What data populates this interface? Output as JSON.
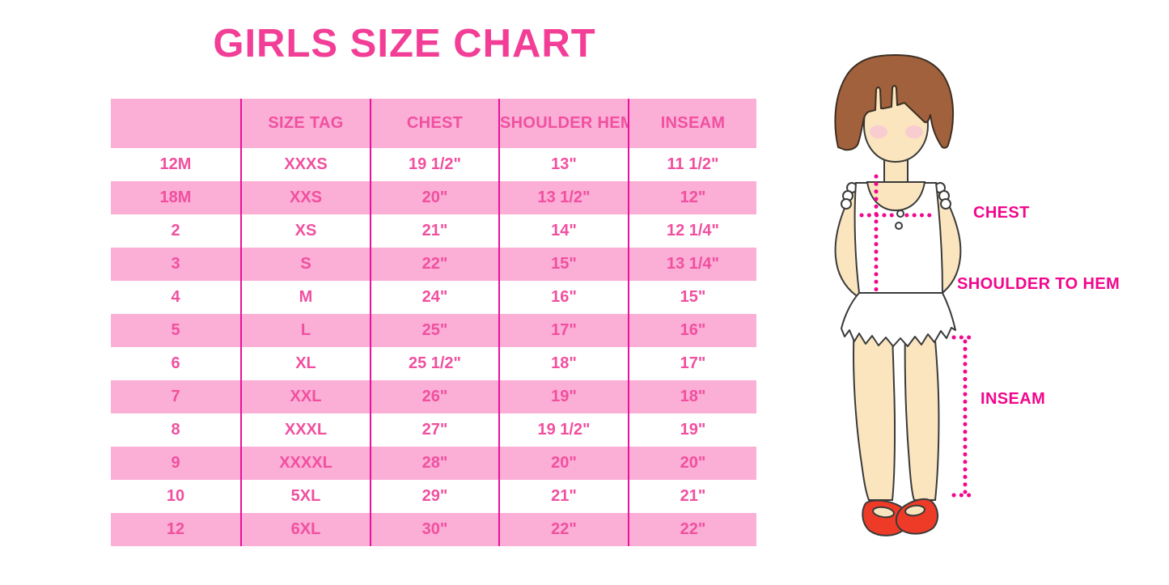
{
  "title": "GIRLS SIZE CHART",
  "chart_data": {
    "type": "table",
    "title": "GIRLS SIZE CHART",
    "columns": [
      "",
      "SIZE TAG",
      "CHEST",
      "SHOULDER HEM",
      "INSEAM"
    ],
    "rows": [
      [
        "12M",
        "XXXS",
        "19 1/2\"",
        "13\"",
        "11 1/2\""
      ],
      [
        "18M",
        "XXS",
        "20\"",
        "13 1/2\"",
        "12\""
      ],
      [
        "2",
        "XS",
        "21\"",
        "14\"",
        "12 1/4\""
      ],
      [
        "3",
        "S",
        "22\"",
        "15\"",
        "13 1/4\""
      ],
      [
        "4",
        "M",
        "24\"",
        "16\"",
        "15\""
      ],
      [
        "5",
        "L",
        "25\"",
        "17\"",
        "16\""
      ],
      [
        "6",
        "XL",
        "25 1/2\"",
        "18\"",
        "17\""
      ],
      [
        "7",
        "XXL",
        "26\"",
        "19\"",
        "18\""
      ],
      [
        "8",
        "XXXL",
        "27\"",
        "19 1/2\"",
        "19\""
      ],
      [
        "9",
        "XXXXL",
        "28\"",
        "20\"",
        "20\""
      ],
      [
        "10",
        "5XL",
        "29\"",
        "21\"",
        "21\""
      ],
      [
        "12",
        "6XL",
        "30\"",
        "22\"",
        "22\""
      ]
    ],
    "row_striping": "even rows pink",
    "layout_hint": "header row pink, magenta vertical column separators only"
  },
  "figure": {
    "description": "cartoon girl with brown bob hair, white sleeveless ruffle dress, red shoes, magenta dotted measurement guides",
    "labels": {
      "chest": "CHEST",
      "shoulder_to_hem": "SHOULDER TO HEM",
      "inseam": "INSEAM"
    }
  },
  "colors": {
    "title_pink": "#F23E96",
    "table_row_pink": "#FBAED6",
    "table_text_pink": "#F0509F",
    "column_rule_magenta": "#EA119C",
    "label_magenta": "#F2068C",
    "dotted_line_magenta": "#F2068C",
    "hair_brown": "#A0613C",
    "skin": "#FAE5BE",
    "blush": "#F7C9D3",
    "shoe_red": "#EE3B28",
    "background": "#FFFFFF"
  }
}
